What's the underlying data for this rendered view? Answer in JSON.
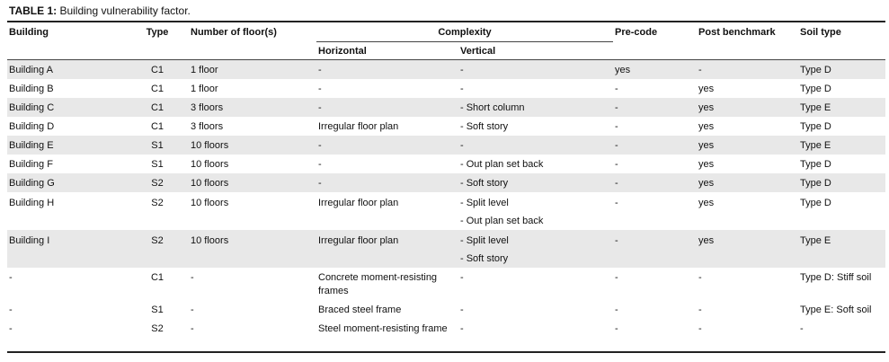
{
  "title": {
    "label": "TABLE 1:",
    "text": " Building vulnerability factor."
  },
  "headers": {
    "building": "Building",
    "type": "Type",
    "floors": "Number of floor(s)",
    "complexity": "Complexity",
    "horizontal": "Horizontal",
    "vertical": "Vertical",
    "precode": "Pre-code",
    "post": "Post benchmark",
    "soil": "Soil type"
  },
  "rows": [
    {
      "building": "Building A",
      "type": "C1",
      "floors": "1 floor",
      "horizontal": "-",
      "vertical": [
        "-"
      ],
      "precode": "yes",
      "post": "-",
      "soil": "Type D"
    },
    {
      "building": "Building B",
      "type": "C1",
      "floors": "1 floor",
      "horizontal": "-",
      "vertical": [
        "-"
      ],
      "precode": "-",
      "post": "yes",
      "soil": "Type D"
    },
    {
      "building": "Building C",
      "type": "C1",
      "floors": "3 floors",
      "horizontal": "-",
      "vertical": [
        "- Short column"
      ],
      "precode": "-",
      "post": "yes",
      "soil": "Type E"
    },
    {
      "building": "Building D",
      "type": "C1",
      "floors": "3 floors",
      "horizontal": "Irregular floor plan",
      "vertical": [
        "- Soft story"
      ],
      "precode": "-",
      "post": "yes",
      "soil": "Type D"
    },
    {
      "building": "Building E",
      "type": "S1",
      "floors": "10 floors",
      "horizontal": "-",
      "vertical": [
        "-"
      ],
      "precode": "-",
      "post": "yes",
      "soil": "Type E"
    },
    {
      "building": "Building F",
      "type": "S1",
      "floors": "10 floors",
      "horizontal": "-",
      "vertical": [
        "- Out plan set back"
      ],
      "precode": "-",
      "post": "yes",
      "soil": "Type D"
    },
    {
      "building": "Building G",
      "type": "S2",
      "floors": "10 floors",
      "horizontal": "-",
      "vertical": [
        "- Soft story"
      ],
      "precode": "-",
      "post": "yes",
      "soil": "Type D"
    },
    {
      "building": "Building H",
      "type": "S2",
      "floors": "10 floors",
      "horizontal": "Irregular floor plan",
      "vertical": [
        "- Split level",
        "- Out plan set back"
      ],
      "precode": "-",
      "post": "yes",
      "soil": "Type D"
    },
    {
      "building": "Building I",
      "type": "S2",
      "floors": "10 floors",
      "horizontal": "Irregular floor plan",
      "vertical": [
        "- Split level",
        "- Soft story"
      ],
      "precode": "-",
      "post": "yes",
      "soil": "Type E"
    },
    {
      "building": "-",
      "type": "C1",
      "floors": "-",
      "horizontal": "Concrete moment-resisting frames",
      "vertical": [
        "-"
      ],
      "precode": "-",
      "post": "-",
      "soil": "Type D: Stiff soil"
    },
    {
      "building": "-",
      "type": "S1",
      "floors": "-",
      "horizontal": "Braced steel frame",
      "vertical": [
        "-"
      ],
      "precode": "-",
      "post": "-",
      "soil": "Type E: Soft soil"
    },
    {
      "building": "-",
      "type": "S2",
      "floors": "-",
      "horizontal": "Steel moment-resisting frame",
      "vertical": [
        "-"
      ],
      "precode": "-",
      "post": "-",
      "soil": "-"
    }
  ]
}
